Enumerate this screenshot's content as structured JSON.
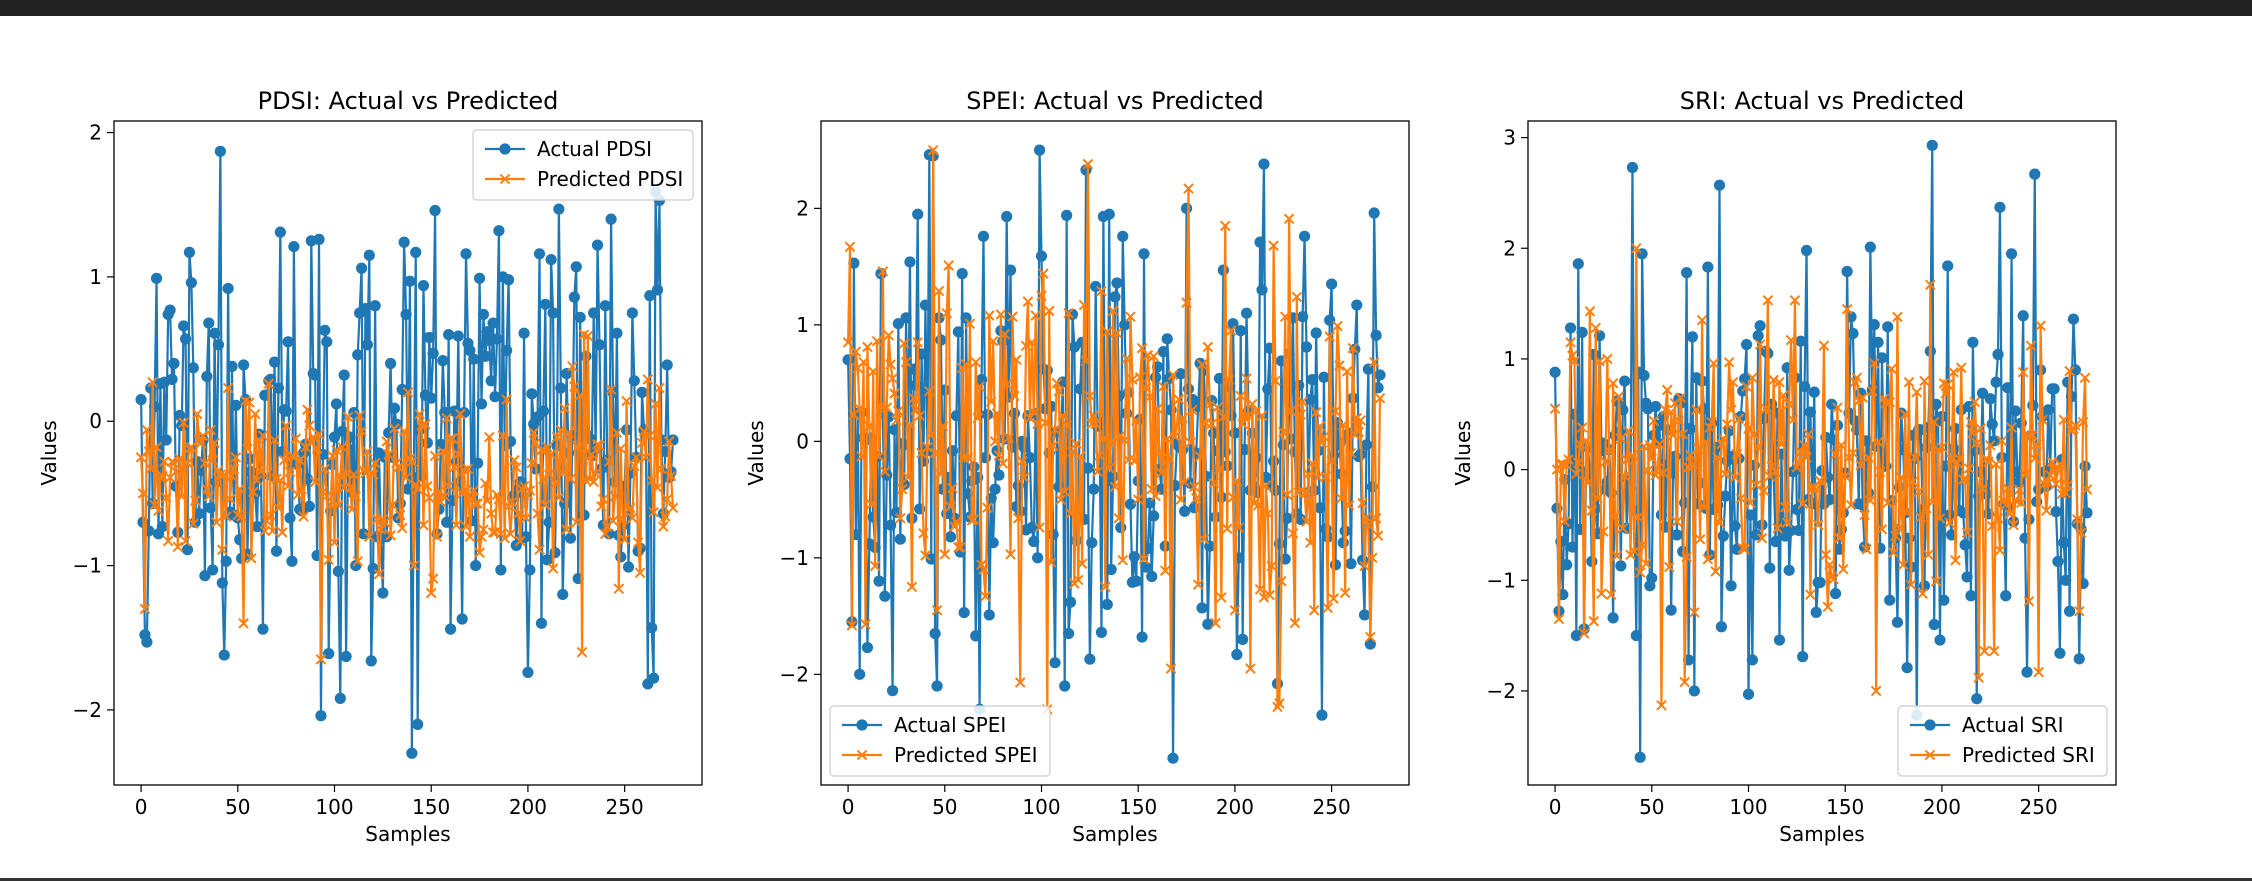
{
  "colors": {
    "actual": "#1f77b4",
    "predicted": "#ff7f0e",
    "frame_top": "#222222"
  },
  "chart_data": [
    {
      "type": "line",
      "title": "PDSI: Actual vs Predicted",
      "xlabel": "Samples",
      "ylabel": "Values",
      "xlim": [
        -14,
        290
      ],
      "ylim": [
        -2.52,
        2.08
      ],
      "xticks": [
        0,
        50,
        100,
        150,
        200,
        250
      ],
      "yticks": [
        -2,
        -1,
        0,
        1,
        2
      ],
      "legend": "top-right",
      "n": 276,
      "series": [
        {
          "name": "Actual PDSI",
          "marker": "circle",
          "seed": 11,
          "sd": 0.72,
          "mean": -0.18,
          "spikes": [
            [
              0,
              0.15
            ],
            [
              2,
              -1.48
            ],
            [
              8,
              0.99
            ],
            [
              14,
              0.74
            ],
            [
              25,
              1.17
            ],
            [
              26,
              0.96
            ],
            [
              41,
              1.87
            ],
            [
              43,
              -1.62
            ],
            [
              72,
              1.31
            ],
            [
              92,
              1.26
            ],
            [
              93,
              -2.04
            ],
            [
              97,
              -1.61
            ],
            [
              118,
              1.15
            ],
            [
              119,
              -1.66
            ],
            [
              136,
              1.24
            ],
            [
              140,
              -2.3
            ],
            [
              142,
              1.17
            ],
            [
              143,
              -2.1
            ],
            [
              146,
              0.94
            ],
            [
              175,
              0.99
            ],
            [
              200,
              -1.74
            ],
            [
              216,
              1.47
            ],
            [
              243,
              1.4
            ],
            [
              264,
              -1.43
            ],
            [
              265,
              -1.78
            ],
            [
              272,
              0.39
            ],
            [
              275,
              -0.13
            ]
          ]
        },
        {
          "name": "Predicted PDSI",
          "marker": "x",
          "seed": 23,
          "sd": 0.36,
          "mean": -0.4,
          "spikes": [
            [
              0,
              -0.25
            ],
            [
              2,
              -1.3
            ],
            [
              53,
              -1.4
            ],
            [
              93,
              -1.65
            ],
            [
              213,
              -1.02
            ],
            [
              228,
              -1.6
            ],
            [
              231,
              0.59
            ],
            [
              275,
              -0.6
            ]
          ]
        }
      ]
    },
    {
      "type": "line",
      "title": "SPEI: Actual vs Predicted",
      "xlabel": "Samples",
      "ylabel": "Values",
      "xlim": [
        -14,
        290
      ],
      "ylim": [
        -2.95,
        2.75
      ],
      "xticks": [
        0,
        50,
        100,
        150,
        200,
        250
      ],
      "yticks": [
        -2,
        -1,
        0,
        1,
        2
      ],
      "legend": "bottom-left",
      "n": 276,
      "series": [
        {
          "name": "Actual SPEI",
          "marker": "circle",
          "seed": 37,
          "sd": 1.0,
          "mean": 0.0,
          "spikes": [
            [
              0,
              0.7
            ],
            [
              2,
              -1.55
            ],
            [
              6,
              -2.0
            ],
            [
              36,
              1.95
            ],
            [
              44,
              2.45
            ],
            [
              46,
              -2.1
            ],
            [
              70,
              1.76
            ],
            [
              107,
              -1.9
            ],
            [
              112,
              -2.1
            ],
            [
              113,
              1.94
            ],
            [
              123,
              2.33
            ],
            [
              132,
              1.93
            ],
            [
              135,
              1.95
            ],
            [
              168,
              -2.72
            ],
            [
              175,
              2.0
            ],
            [
              201,
              -1.83
            ],
            [
              222,
              -2.08
            ],
            [
              236,
              1.76
            ],
            [
              270,
              -1.74
            ],
            [
              272,
              1.96
            ],
            [
              275,
              0.57
            ]
          ]
        },
        {
          "name": "Predicted SPEI",
          "marker": "x",
          "seed": 53,
          "sd": 0.85,
          "mean": 0.0,
          "spikes": [
            [
              0,
              0.85
            ],
            [
              44,
              2.5
            ],
            [
              46,
              -1.45
            ],
            [
              103,
              -2.3
            ],
            [
              124,
              2.38
            ],
            [
              167,
              -1.95
            ],
            [
              176,
              2.17
            ],
            [
              195,
              1.85
            ],
            [
              220,
              1.68
            ],
            [
              222,
              -2.28
            ],
            [
              223,
              -2.25
            ],
            [
              270,
              -1.68
            ],
            [
              275,
              0.37
            ]
          ]
        }
      ]
    },
    {
      "type": "line",
      "title": "SRI: Actual vs Predicted",
      "xlabel": "Samples",
      "ylabel": "Values",
      "xlim": [
        -14,
        290
      ],
      "ylim": [
        -2.85,
        3.15
      ],
      "xticks": [
        0,
        50,
        100,
        150,
        200,
        250
      ],
      "yticks": [
        -2,
        -1,
        0,
        1,
        2,
        3
      ],
      "legend": "bottom-right",
      "n": 276,
      "series": [
        {
          "name": "Actual SRI",
          "marker": "circle",
          "seed": 71,
          "sd": 0.95,
          "mean": 0.0,
          "spikes": [
            [
              0,
              0.88
            ],
            [
              2,
              -1.28
            ],
            [
              8,
              1.28
            ],
            [
              11,
              -1.5
            ],
            [
              40,
              2.73
            ],
            [
              42,
              -1.5
            ],
            [
              44,
              -2.6
            ],
            [
              45,
              1.95
            ],
            [
              72,
              -2.0
            ],
            [
              85,
              2.57
            ],
            [
              100,
              -2.03
            ],
            [
              102,
              -1.72
            ],
            [
              130,
              1.98
            ],
            [
              195,
              2.93
            ],
            [
              218,
              -2.07
            ],
            [
              230,
              2.37
            ],
            [
              236,
              1.95
            ],
            [
              244,
              -1.83
            ],
            [
              248,
              2.67
            ],
            [
              271,
              -1.71
            ],
            [
              275,
              -0.39
            ]
          ]
        },
        {
          "name": "Predicted SRI",
          "marker": "x",
          "seed": 89,
          "sd": 0.72,
          "mean": 0.0,
          "spikes": [
            [
              0,
              0.55
            ],
            [
              2,
              -1.35
            ],
            [
              42,
              2.0
            ],
            [
              55,
              -2.13
            ],
            [
              76,
              1.35
            ],
            [
              166,
              -2.0
            ],
            [
              194,
              1.67
            ],
            [
              219,
              -1.88
            ],
            [
              250,
              -1.83
            ],
            [
              271,
              -1.28
            ],
            [
              275,
              -0.18
            ]
          ]
        }
      ]
    }
  ]
}
